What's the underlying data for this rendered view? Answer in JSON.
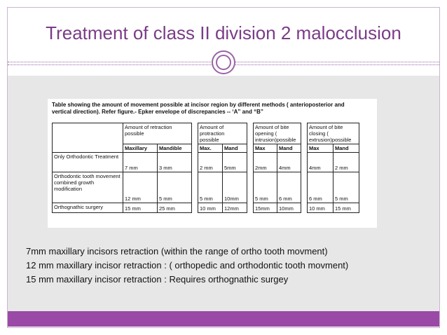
{
  "slide": {
    "title": "Treatment of class II division 2 malocclusion"
  },
  "figure": {
    "caption_line1": "Table showing the amount of movement possible at incisor region  by different methods ( anterioposterior and",
    "caption_line2": "vertical direction). Refer figure.- Epker envelope of discrepancies -- ‘A” and “B”",
    "group_headers": {
      "retraction": "Amount of retraction possible",
      "protraction": "Amount of protraction possible",
      "intrusion": "Amount of bite opening ( intrusion)possible",
      "extrusion": "Amount of bite closing ( extrusion)possible"
    },
    "sub_headers": {
      "maxillary": "Maxillary",
      "mandible": "Mandible",
      "max": "Max.",
      "mand": "Mand",
      "max2": "Max",
      "mand2": "Mand",
      "max3": "Max",
      "mand3": "Mand"
    },
    "rows": [
      {
        "label": "Only Orthodontic Treatment",
        "ret_max": "7 mm",
        "ret_mand": "3 mm",
        "pro_max": "2 mm",
        "pro_mand": "5mm",
        "int_max": "2mm",
        "int_mand": "4mm",
        "ext_max": "4mm",
        "ext_mand": "2  mm"
      },
      {
        "label": "Orthodontic tooth movement combined growth modification",
        "ret_max": "12 mm",
        "ret_mand": "5 mm",
        "pro_max": "5 mm",
        "pro_mand": "10mm",
        "int_max": "5 mm",
        "int_mand": "6 mm",
        "ext_max": "6 mm",
        "ext_mand": "5 mm"
      },
      {
        "label": "Orthognathic surgery",
        "ret_max": "15 mm",
        "ret_mand": "25 mm",
        "pro_max": "10 mm",
        "pro_mand": "12mm",
        "int_max": "15mm",
        "int_mand": "10mm",
        "ext_max": "10 mm",
        "ext_mand": "15 mm"
      }
    ]
  },
  "notes": [
    "7mm  maxillary incisors retraction (within the range of ortho tooth movment)",
    "12 mm maxillary incisor retraction : ( orthopedic and orthodontic tooth  movment)",
    "15 mm maxillary incisor retraction : Requires orthognathic surgey"
  ],
  "colors": {
    "accent": "#9a4aa6",
    "title": "#7a3c87",
    "panel": "#e7e7e7"
  }
}
